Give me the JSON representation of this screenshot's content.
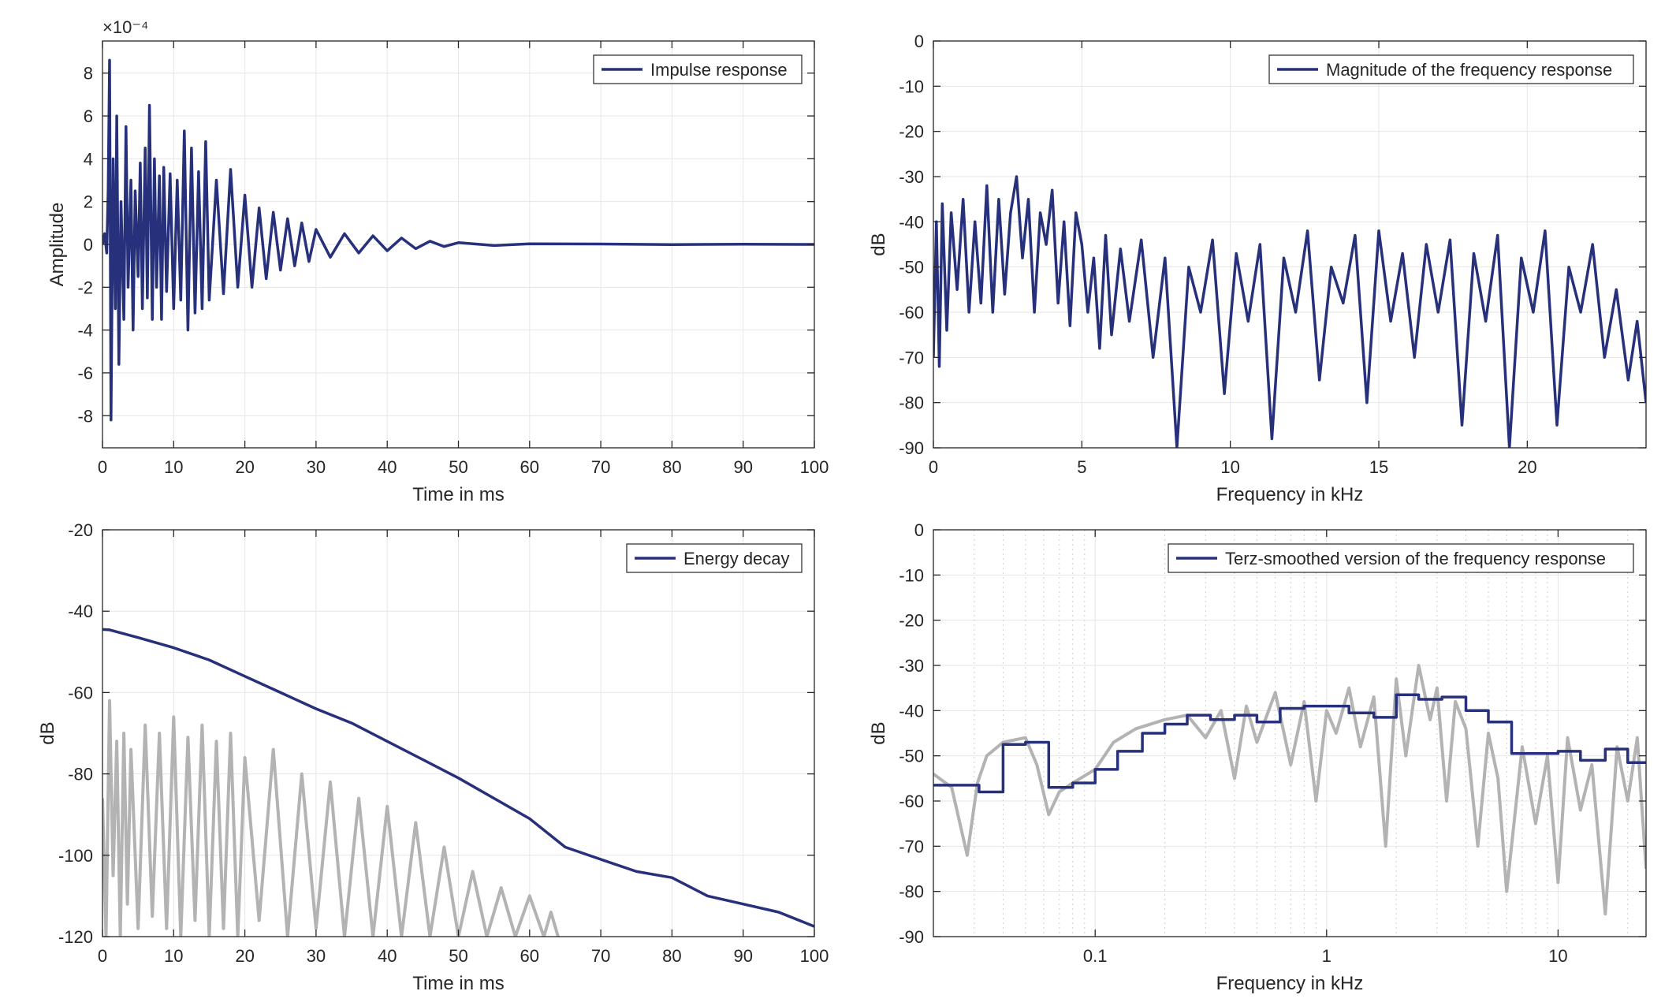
{
  "figure": {
    "background_color": "#ffffff",
    "axes_color": "#262626",
    "grid_color": "#e6e6e6",
    "primary_line_color": "#27307a",
    "secondary_line_color": "#b3b3b3"
  },
  "chart_data": [
    {
      "id": "impulse",
      "type": "line",
      "xlabel": "Time in ms",
      "ylabel": "Amplitude",
      "xlim": [
        0,
        100
      ],
      "ylim": [
        -9.5,
        9.5
      ],
      "xticks": [
        "0",
        "10",
        "20",
        "30",
        "40",
        "50",
        "60",
        "70",
        "80",
        "90",
        "100"
      ],
      "yticks": [
        "-8",
        "-6",
        "-4",
        "-2",
        "0",
        "2",
        "4",
        "6",
        "8"
      ],
      "y_exponent_label": "×10⁻⁴",
      "legend_position": "top-right",
      "grid": true,
      "series": [
        {
          "name": "Impulse response",
          "color": "#27307a",
          "x": [
            0,
            0.3,
            0.6,
            0.8,
            1,
            1.2,
            1.5,
            1.8,
            2,
            2.3,
            2.6,
            3,
            3.3,
            3.6,
            4,
            4.3,
            4.6,
            5,
            5.3,
            5.6,
            6,
            6.3,
            6.6,
            7,
            7.3,
            7.6,
            8,
            8.3,
            8.6,
            9,
            9.5,
            10,
            10.5,
            11,
            11.5,
            12,
            12.5,
            13,
            13.5,
            14,
            14.5,
            15,
            16,
            17,
            18,
            19,
            20,
            21,
            22,
            23,
            24,
            25,
            26,
            27,
            28,
            29,
            30,
            32,
            34,
            36,
            38,
            40,
            42,
            44,
            46,
            48,
            50,
            55,
            60,
            70,
            80,
            90,
            100
          ],
          "y": [
            0,
            0.5,
            -0.4,
            2.5,
            8.6,
            -8.2,
            4,
            -3,
            6,
            -5.6,
            2,
            -3.5,
            5.5,
            -2,
            3,
            -4,
            2.5,
            -1.5,
            3.8,
            -3,
            4.5,
            -2.5,
            6.5,
            -3.5,
            4,
            -2,
            3.2,
            -3.5,
            3.6,
            -2.2,
            3.3,
            -3,
            3,
            -2.6,
            5.3,
            -4,
            4.5,
            -3.2,
            3.4,
            -3,
            4.8,
            -2.6,
            3,
            -2.3,
            3.5,
            -2,
            2.3,
            -2,
            1.7,
            -1.6,
            1.5,
            -1.2,
            1.2,
            -1,
            1,
            -0.8,
            0.7,
            -0.6,
            0.5,
            -0.4,
            0.4,
            -0.3,
            0.3,
            -0.2,
            0.15,
            -0.1,
            0.08,
            -0.05,
            0.03,
            0.02,
            -0.01,
            0.01,
            0
          ]
        }
      ]
    },
    {
      "id": "magnitude",
      "type": "line",
      "xlabel": "Frequency in kHz",
      "ylabel": "dB",
      "xlim": [
        0,
        24
      ],
      "ylim": [
        -90,
        0
      ],
      "xticks": [
        "0",
        "5",
        "10",
        "15",
        "20"
      ],
      "yticks": [
        "0",
        "-10",
        "-20",
        "-30",
        "-40",
        "-50",
        "-60",
        "-70",
        "-80",
        "-90"
      ],
      "legend_position": "top-right",
      "grid": true,
      "series": [
        {
          "name": "Magnitude of the frequency response",
          "color": "#27307a",
          "x": [
            0,
            0.1,
            0.2,
            0.3,
            0.45,
            0.6,
            0.8,
            1,
            1.2,
            1.4,
            1.6,
            1.8,
            2,
            2.2,
            2.4,
            2.6,
            2.8,
            3,
            3.2,
            3.4,
            3.6,
            3.8,
            4,
            4.2,
            4.4,
            4.6,
            4.8,
            5,
            5.2,
            5.4,
            5.6,
            5.8,
            6,
            6.3,
            6.6,
            7,
            7.4,
            7.8,
            8.2,
            8.6,
            9,
            9.4,
            9.8,
            10.2,
            10.6,
            11,
            11.4,
            11.8,
            12.2,
            12.6,
            13,
            13.4,
            13.8,
            14.2,
            14.6,
            15,
            15.4,
            15.8,
            16.2,
            16.6,
            17,
            17.4,
            17.8,
            18.2,
            18.6,
            19,
            19.4,
            19.8,
            20.2,
            20.6,
            21,
            21.4,
            21.8,
            22.2,
            22.6,
            23,
            23.4,
            23.7,
            24
          ],
          "y": [
            -70,
            -40,
            -72,
            -36,
            -64,
            -38,
            -55,
            -35,
            -60,
            -40,
            -58,
            -32,
            -60,
            -35,
            -56,
            -38,
            -30,
            -48,
            -35,
            -60,
            -38,
            -45,
            -33,
            -58,
            -40,
            -63,
            -38,
            -45,
            -60,
            -48,
            -68,
            -43,
            -65,
            -46,
            -62,
            -44,
            -70,
            -48,
            -90,
            -50,
            -60,
            -44,
            -78,
            -47,
            -62,
            -45,
            -88,
            -48,
            -60,
            -42,
            -75,
            -50,
            -58,
            -43,
            -80,
            -42,
            -62,
            -47,
            -70,
            -45,
            -60,
            -44,
            -85,
            -47,
            -62,
            -43,
            -90,
            -48,
            -60,
            -42,
            -85,
            -50,
            -60,
            -45,
            -70,
            -55,
            -75,
            -62,
            -80
          ]
        }
      ]
    },
    {
      "id": "energy",
      "type": "line",
      "xlabel": "Time in ms",
      "ylabel": "dB",
      "xlim": [
        0,
        100
      ],
      "ylim": [
        -120,
        -20
      ],
      "xticks": [
        "0",
        "10",
        "20",
        "30",
        "40",
        "50",
        "60",
        "70",
        "80",
        "90",
        "100"
      ],
      "yticks": [
        "-20",
        "-40",
        "-60",
        "-80",
        "-100",
        "-120"
      ],
      "legend_position": "top-right",
      "grid": true,
      "series": [
        {
          "name": "Energy decay",
          "color": "#27307a",
          "x": [
            0,
            1,
            5,
            10,
            15,
            20,
            25,
            30,
            35,
            40,
            45,
            50,
            55,
            60,
            65,
            70,
            75,
            80,
            85,
            90,
            95,
            100
          ],
          "y": [
            -44.5,
            -44.6,
            -46.5,
            -49,
            -52,
            -56,
            -60,
            -64,
            -67.5,
            -72,
            -76.5,
            -81,
            -86,
            -91,
            -98,
            -101,
            -104,
            -105.5,
            -110,
            -112,
            -114,
            -117.5
          ]
        },
        {
          "color": "#b3b3b3",
          "x": [
            0,
            0.5,
            1,
            1.5,
            2,
            2.5,
            3,
            3.5,
            4,
            5,
            6,
            7,
            8,
            9,
            10,
            11,
            12,
            13,
            14,
            15,
            16,
            17,
            18,
            19,
            20,
            22,
            24,
            26,
            28,
            30,
            32,
            34,
            36,
            38,
            40,
            42,
            44,
            46,
            48,
            50,
            52,
            54,
            56,
            58,
            60,
            62,
            63,
            64
          ],
          "y": [
            -86,
            -120,
            -62,
            -105,
            -72,
            -120,
            -70,
            -112,
            -74,
            -118,
            -68,
            -115,
            -70,
            -118,
            -66,
            -120,
            -71,
            -116,
            -68,
            -120,
            -72,
            -118,
            -70,
            -120,
            -76,
            -116,
            -74,
            -120,
            -80,
            -118,
            -82,
            -120,
            -86,
            -120,
            -88,
            -120,
            -92,
            -120,
            -98,
            -120,
            -104,
            -120,
            -108,
            -120,
            -110,
            -120,
            -114,
            -120
          ]
        }
      ]
    },
    {
      "id": "terz",
      "type": "line",
      "xlabel": "Frequency in kHz",
      "ylabel": "dB",
      "x_scale": "log",
      "xlim": [
        0.02,
        24
      ],
      "ylim": [
        -90,
        0
      ],
      "xticks": [
        "0.1",
        "1",
        "10"
      ],
      "yticks": [
        "0",
        "-10",
        "-20",
        "-30",
        "-40",
        "-50",
        "-60",
        "-70",
        "-80",
        "-90"
      ],
      "legend_position": "top-right",
      "grid": true,
      "series": [
        {
          "name": "Terz-smoothed version of the frequency response",
          "color": "#27307a",
          "x": [
            0.02,
            0.025,
            0.0315,
            0.04,
            0.05,
            0.063,
            0.08,
            0.1,
            0.125,
            0.16,
            0.2,
            0.25,
            0.315,
            0.4,
            0.5,
            0.63,
            0.8,
            1,
            1.25,
            1.6,
            2,
            2.5,
            3.15,
            4,
            5,
            6.3,
            8,
            10,
            12.5,
            16,
            20,
            24
          ],
          "y": [
            -56.5,
            -56.5,
            -58,
            -47.5,
            -47,
            -57,
            -56,
            -53,
            -49,
            -45,
            -43,
            -41,
            -42,
            -41,
            -42.5,
            -39.5,
            -39,
            -39,
            -40.5,
            -41.5,
            -36.5,
            -37.5,
            -37,
            -40,
            -42.5,
            -49.5,
            -49.5,
            -49,
            -51,
            -48.5,
            -51.5,
            -51.5
          ]
        },
        {
          "color": "#b3b3b3",
          "x": [
            0.02,
            0.024,
            0.028,
            0.031,
            0.034,
            0.04,
            0.05,
            0.056,
            0.063,
            0.07,
            0.08,
            0.1,
            0.12,
            0.15,
            0.2,
            0.25,
            0.3,
            0.35,
            0.4,
            0.45,
            0.5,
            0.6,
            0.7,
            0.8,
            0.9,
            1,
            1.1,
            1.25,
            1.4,
            1.6,
            1.8,
            2,
            2.2,
            2.5,
            2.8,
            3,
            3.3,
            3.6,
            4,
            4.5,
            5,
            5.5,
            6,
            7,
            8,
            9,
            10,
            11,
            12.5,
            14,
            16,
            18,
            20,
            22,
            24
          ],
          "y": [
            -54,
            -57,
            -72,
            -56,
            -50,
            -47,
            -46,
            -52,
            -63,
            -58,
            -56,
            -53,
            -47,
            -44,
            -42,
            -41,
            -46,
            -40,
            -55,
            -39,
            -47,
            -36,
            -52,
            -38,
            -60,
            -40,
            -45,
            -35,
            -48,
            -37,
            -70,
            -33,
            -50,
            -30,
            -42,
            -35,
            -60,
            -38,
            -44,
            -70,
            -45,
            -55,
            -80,
            -48,
            -65,
            -50,
            -78,
            -46,
            -62,
            -52,
            -85,
            -48,
            -60,
            -46,
            -75
          ]
        }
      ]
    }
  ]
}
